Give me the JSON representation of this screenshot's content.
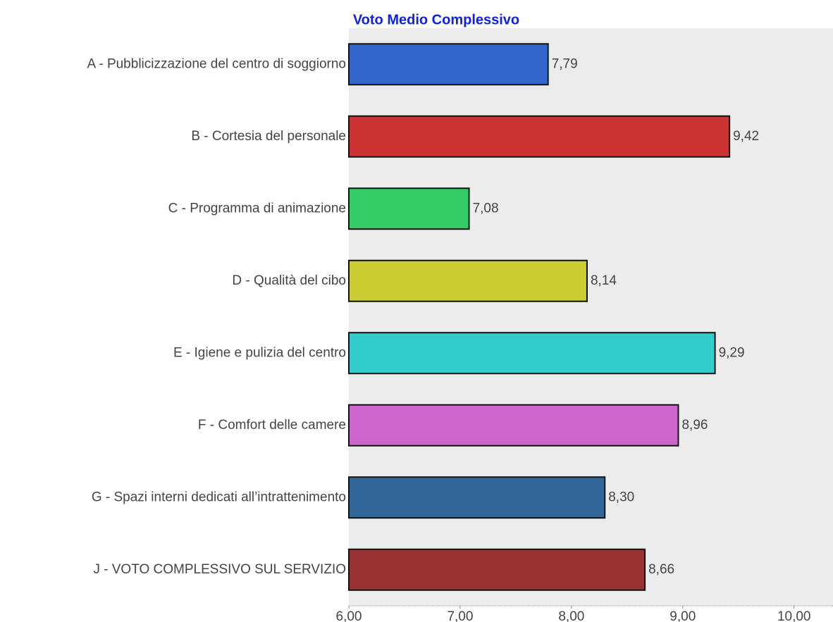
{
  "chart_data": {
    "type": "bar",
    "orientation": "horizontal",
    "title": "Voto Medio Complessivo",
    "categories": [
      "A - Pubblicizzazione del centro di soggiorno",
      "B - Cortesia del personale",
      "C - Programma di animazione",
      "D - Qualità del cibo",
      "E - Igiene e pulizia del centro",
      "F -  Comfort delle camere",
      "G -  Spazi interni dedicati all’intrattenimento ",
      "J - VOTO COMPLESSIVO SUL SERVIZIO"
    ],
    "values": [
      7.79,
      9.42,
      7.08,
      8.14,
      9.29,
      8.96,
      8.3,
      8.66
    ],
    "value_labels": [
      "7,79",
      "9,42",
      "7,08",
      "8,14",
      "9,29",
      "8,96",
      "8,30",
      "8,66"
    ],
    "colors": [
      "#3366cc",
      "#cc3333",
      "#33cc66",
      "#cccc33",
      "#33cccc",
      "#cc66cc",
      "#336699",
      "#993333"
    ],
    "xlim": [
      6,
      10.35
    ],
    "xticks": [
      {
        "value": 6,
        "label": "6,00"
      },
      {
        "value": 7,
        "label": "7,00"
      },
      {
        "value": 8,
        "label": "8,00"
      },
      {
        "value": 9,
        "label": "9,00"
      },
      {
        "value": 10,
        "label": "10,00"
      }
    ]
  }
}
